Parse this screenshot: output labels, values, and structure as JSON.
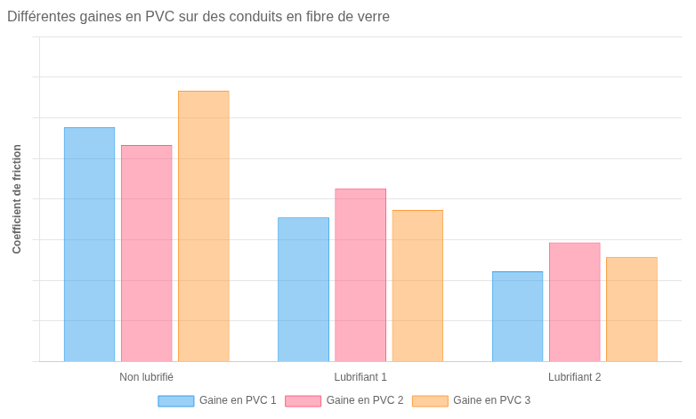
{
  "chart_data": {
    "type": "bar",
    "title": "Différentes gaines en PVC sur des conduits en fibre de verre",
    "ylabel": "Coefficient de friction",
    "categories": [
      "Non lubrifié",
      "Lubrifiant 1",
      "Lubrifiant 2"
    ],
    "series": [
      {
        "name": "Gaine en PVC 1",
        "values": [
          0.65,
          0.4,
          0.25
        ]
      },
      {
        "name": "Gaine en PVC 2",
        "values": [
          0.6,
          0.48,
          0.33
        ]
      },
      {
        "name": "Gaine en PVC 3",
        "values": [
          0.75,
          0.42,
          0.29
        ]
      }
    ],
    "ylim": [
      0,
      0.9
    ],
    "yticks": [
      0,
      0.1125,
      0.225,
      0.3375,
      0.45,
      0.5625,
      0.675,
      0.7875,
      0.9
    ],
    "grid": true,
    "legend": "bottom",
    "tick_labels": "x"
  }
}
